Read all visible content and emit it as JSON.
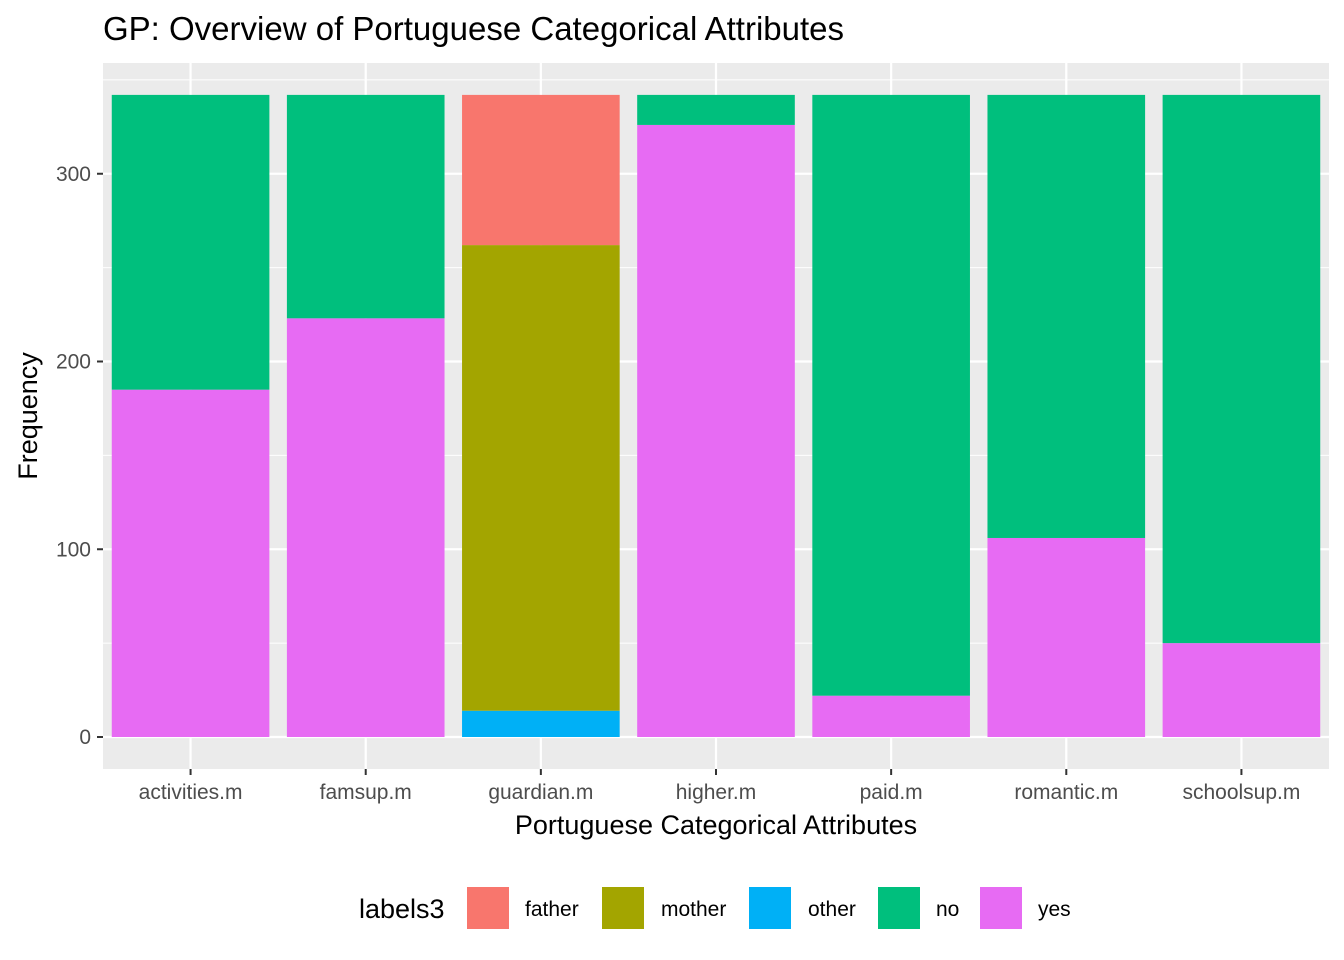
{
  "chart_data": {
    "type": "bar",
    "stacked": true,
    "title": "GP: Overview of Portuguese Categorical Attributes",
    "xlabel": "Portuguese Categorical Attributes",
    "ylabel": "Frequency",
    "ylim": [
      0,
      342
    ],
    "yticks": [
      0,
      100,
      200,
      300
    ],
    "grid": true,
    "categories": [
      "activities.m",
      "famsup.m",
      "guardian.m",
      "higher.m",
      "paid.m",
      "romantic.m",
      "schoolsup.m"
    ],
    "series": [
      {
        "name": "father",
        "color": "#F8766D",
        "values": [
          0,
          0,
          80,
          0,
          0,
          0,
          0
        ]
      },
      {
        "name": "mother",
        "color": "#A3A500",
        "values": [
          0,
          0,
          248,
          0,
          0,
          0,
          0
        ]
      },
      {
        "name": "other",
        "color": "#00B0F6",
        "values": [
          0,
          0,
          14,
          0,
          0,
          0,
          0
        ]
      },
      {
        "name": "no",
        "color": "#00BF7D",
        "values": [
          157,
          119,
          0,
          16,
          320,
          236,
          292
        ]
      },
      {
        "name": "yes",
        "color": "#E76BF3",
        "values": [
          185,
          223,
          0,
          326,
          22,
          106,
          50
        ]
      }
    ],
    "stack_order_top_to_bottom": [
      "father",
      "mother",
      "other",
      "no",
      "yes"
    ],
    "legend": {
      "title": "labels3",
      "position": "bottom"
    }
  }
}
